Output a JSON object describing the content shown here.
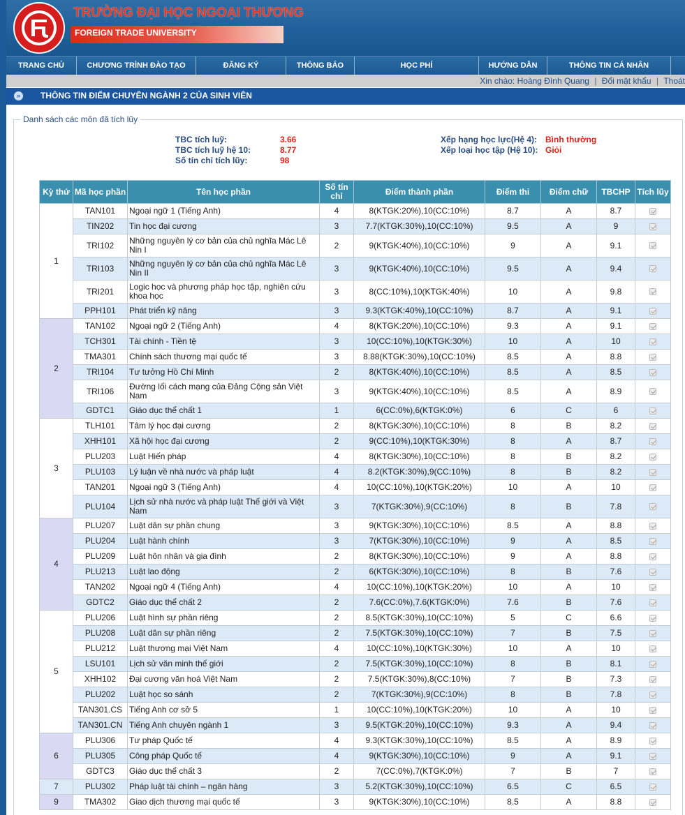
{
  "header": {
    "title_vi": "TRƯỜNG ĐẠI HỌC NGOẠI THƯƠNG",
    "title_en": "FOREIGN TRADE UNIVERSITY",
    "logo_text": "ĐẠI HỌC NGOẠI THƯƠNG · FOREIGN TRADE UNIVERSITY",
    "logo_icon": "ftu-logo-icon"
  },
  "nav": [
    "TRANG CHỦ",
    "CHƯƠNG TRÌNH ĐÀO TẠO",
    "ĐĂNG KÝ",
    "THÔNG BÁO",
    "HỌC PHÍ",
    "HƯỚNG DẪN",
    "THÔNG TIN CÁ NHÂN"
  ],
  "userbar": {
    "greeting": "Xin chào: Hoàng Đình Quang",
    "change_password": "Đổi mật khẩu",
    "logout": "Thoát",
    "separator": "|"
  },
  "page_title": "THÔNG TIN ĐIỂM CHUYÊN NGÀNH 2 CỦA SINH VIÊN",
  "panel_legend": "Danh sách các môn đã tích lũy",
  "summary": {
    "tbc_label": "TBC tích luỹ:",
    "tbc_value": "3.66",
    "tbc10_label": "TBC tích luỹ hệ 10:",
    "tbc10_value": "8.77",
    "credits_label": "Số tín chỉ tích lũy:",
    "credits_value": "98",
    "rank4_label": "Xếp hạng học lực(Hệ 4):",
    "rank4_value": "Bình thường",
    "rank10_label": "Xếp loại học tập (Hệ 10):",
    "rank10_value": "Giỏi"
  },
  "columns": [
    "Kỳ thứ",
    "Mã học phần",
    "Tên học phần",
    "Số tín chỉ",
    "Điểm thành phần",
    "Điểm thi",
    "Điểm chữ",
    "TBCHP",
    "Tích lũy"
  ],
  "colors": {
    "header_bg": "#3b8fae",
    "row_alt": "#dce9f6",
    "semester_green": "#e9f5d5",
    "semester_purple": "#d9d9f3",
    "value_red": "#e0231a"
  },
  "semesters": [
    {
      "term": "1",
      "rows": [
        [
          "TAN101",
          "Ngoại ngữ 1 (Tiếng Anh)",
          "4",
          "8(KTGK:20%),10(CC:10%)",
          "8.7",
          "A",
          "8.7"
        ],
        [
          "TIN202",
          "Tin học đại cương",
          "3",
          "7.7(KTGK:30%),10(CC:10%)",
          "9.5",
          "A",
          "9"
        ],
        [
          "TRI102",
          "Những nguyên lý cơ bản của chủ nghĩa Mác Lê Nin I",
          "2",
          "9(KTGK:40%),10(CC:10%)",
          "9",
          "A",
          "9.1"
        ],
        [
          "TRI103",
          "Những nguyên lý cơ bản của chủ nghĩa Mác Lê Nin II",
          "3",
          "9(KTGK:40%),10(CC:10%)",
          "9.5",
          "A",
          "9.4"
        ],
        [
          "TRI201",
          "Logic học và phương pháp học tập, nghiên cứu khoa học",
          "3",
          "8(CC:10%),10(KTGK:40%)",
          "10",
          "A",
          "9.8"
        ],
        [
          "PPH101",
          "Phát triển kỹ năng",
          "3",
          "9.3(KTGK:40%),10(CC:10%)",
          "8.7",
          "A",
          "9.1"
        ]
      ]
    },
    {
      "term": "2",
      "rows": [
        [
          "TAN102",
          "Ngoại ngữ 2 (Tiếng Anh)",
          "4",
          "8(KTGK:20%),10(CC:10%)",
          "9.3",
          "A",
          "9.1"
        ],
        [
          "TCH301",
          "Tài chính - Tiền tệ",
          "3",
          "10(CC:10%),10(KTGK:30%)",
          "10",
          "A",
          "10"
        ],
        [
          "TMA301",
          "Chính sách thương mại quốc tế",
          "3",
          "8.88(KTGK:30%),10(CC:10%)",
          "8.5",
          "A",
          "8.8"
        ],
        [
          "TRI104",
          "Tư tưởng Hồ Chí Minh",
          "2",
          "8(KTGK:40%),10(CC:10%)",
          "8.5",
          "A",
          "8.5"
        ],
        [
          "TRI106",
          "Đường lối cách mạng của Đảng Cộng sản Việt Nam",
          "3",
          "9(KTGK:40%),10(CC:10%)",
          "8.5",
          "A",
          "8.9"
        ],
        [
          "GDTC1",
          "Giáo dục thể chất 1",
          "1",
          "6(CC:0%),6(KTGK:0%)",
          "6",
          "C",
          "6"
        ]
      ]
    },
    {
      "term": "3",
      "rows": [
        [
          "TLH101",
          "Tâm lý học đại cương",
          "2",
          "8(KTGK:30%),10(CC:10%)",
          "8",
          "B",
          "8.2"
        ],
        [
          "XHH101",
          "Xã hội học đại cương",
          "2",
          "9(CC:10%),10(KTGK:30%)",
          "8",
          "A",
          "8.7"
        ],
        [
          "PLU203",
          "Luật Hiến pháp",
          "4",
          "8(KTGK:30%),10(CC:10%)",
          "8",
          "B",
          "8.2"
        ],
        [
          "PLU103",
          "Lý luận về nhà nước và pháp luật",
          "4",
          "8.2(KTGK:30%),9(CC:10%)",
          "8",
          "B",
          "8.2"
        ],
        [
          "TAN201",
          "Ngoại ngữ 3 (Tiếng Anh)",
          "4",
          "10(CC:10%),10(KTGK:20%)",
          "10",
          "A",
          "10"
        ],
        [
          "PLU104",
          "Lịch sử nhà nước và pháp luật Thế giới và Việt Nam",
          "3",
          "7(KTGK:30%),9(CC:10%)",
          "8",
          "B",
          "7.8"
        ]
      ]
    },
    {
      "term": "4",
      "rows": [
        [
          "PLU207",
          "Luật dân sự phần chung",
          "3",
          "9(KTGK:30%),10(CC:10%)",
          "8.5",
          "A",
          "8.8"
        ],
        [
          "PLU204",
          "Luật hành chính",
          "3",
          "7(KTGK:30%),10(CC:10%)",
          "9",
          "A",
          "8.5"
        ],
        [
          "PLU209",
          "Luật hôn nhân và gia đình",
          "2",
          "8(KTGK:30%),10(CC:10%)",
          "9",
          "A",
          "8.8"
        ],
        [
          "PLU213",
          "Luật lao động",
          "2",
          "6(KTGK:30%),10(CC:10%)",
          "8",
          "B",
          "7.6"
        ],
        [
          "TAN202",
          "Ngoại ngữ 4 (Tiếng Anh)",
          "4",
          "10(CC:10%),10(KTGK:20%)",
          "10",
          "A",
          "10"
        ],
        [
          "GDTC2",
          "Giáo dục thể chất 2",
          "2",
          "7.6(CC:0%),7.6(KTGK:0%)",
          "7.6",
          "B",
          "7.6"
        ]
      ]
    },
    {
      "term": "5",
      "rows": [
        [
          "PLU206",
          "Luật hình sự phần riêng",
          "2",
          "8.5(KTGK:30%),10(CC:10%)",
          "5",
          "C",
          "6.6"
        ],
        [
          "PLU208",
          "Luật dân sự phần riêng",
          "2",
          "7.5(KTGK:30%),10(CC:10%)",
          "7",
          "B",
          "7.5"
        ],
        [
          "PLU212",
          "Luật thương mại Việt Nam",
          "4",
          "10(CC:10%),10(KTGK:30%)",
          "10",
          "A",
          "10"
        ],
        [
          "LSU101",
          "Lịch sử văn minh thế giới",
          "2",
          "7.5(KTGK:30%),10(CC:10%)",
          "8",
          "B",
          "8.1"
        ],
        [
          "XHH102",
          "Đại cương văn hoá Việt Nam",
          "2",
          "7.5(KTGK:30%),8(CC:10%)",
          "7",
          "B",
          "7.3"
        ],
        [
          "PLU202",
          "Luật học so sánh",
          "2",
          "7(KTGK:30%),9(CC:10%)",
          "8",
          "B",
          "7.8"
        ],
        [
          "TAN301.CS",
          "Tiếng Anh cơ sở 5",
          "1",
          "10(CC:10%),10(KTGK:20%)",
          "10",
          "A",
          "10"
        ],
        [
          "TAN301.CN",
          "Tiếng Anh chuyên ngành 1",
          "3",
          "9.5(KTGK:20%),10(CC:10%)",
          "9.3",
          "A",
          "9.4"
        ]
      ]
    },
    {
      "term": "6",
      "rows": [
        [
          "PLU306",
          "Tư pháp Quốc tế",
          "4",
          "9.3(KTGK:30%),10(CC:10%)",
          "8.5",
          "A",
          "8.9"
        ],
        [
          "PLU305",
          "Công pháp Quốc tế",
          "4",
          "9(KTGK:30%),10(CC:10%)",
          "9",
          "A",
          "9.1"
        ],
        [
          "GDTC3",
          "Giáo dục thể chất 3",
          "2",
          "7(CC:0%),7(KTGK:0%)",
          "7",
          "B",
          "7"
        ]
      ]
    },
    {
      "term": "7",
      "rows": [
        [
          "PLU302",
          "Pháp luật tài chính – ngân hàng",
          "3",
          "5.2(KTGK:30%),10(CC:10%)",
          "6.5",
          "C",
          "6.5"
        ]
      ]
    },
    {
      "term": "9",
      "rows": [
        [
          "TMA302",
          "Giao dịch thương mại quốc tế",
          "3",
          "9(KTGK:30%),10(CC:10%)",
          "8.5",
          "A",
          "8.8"
        ]
      ]
    }
  ]
}
